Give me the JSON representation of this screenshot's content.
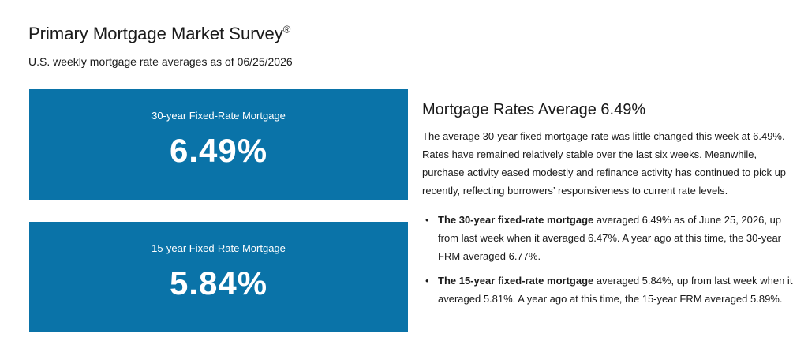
{
  "header": {
    "title": "Primary Mortgage Market Survey",
    "title_mark": "®",
    "subtitle": "U.S. weekly mortgage rate averages as of 06/25/2026"
  },
  "cards": [
    {
      "label": "30-year Fixed-Rate Mortgage",
      "value": "6.49%"
    },
    {
      "label": "15-year Fixed-Rate Mortgage",
      "value": "5.84%"
    }
  ],
  "summary": {
    "heading": "Mortgage Rates Average 6.49%",
    "body": "The average 30-year fixed mortgage rate was little changed this week at 6.49%. Rates have remained relatively stable over the last six weeks. Meanwhile, purchase activity eased modestly and refinance activity has continued to pick up recently, reflecting borrowers’ responsiveness to current rate levels.",
    "bullets": [
      {
        "bold": "The 30-year fixed-rate mortgage",
        "text": " averaged 6.49% as of June 25, 2026, up from last week when it averaged 6.47%. A year ago at this time, the 30-year FRM averaged 6.77%."
      },
      {
        "bold": "The 15-year fixed-rate mortgage",
        "text": " averaged 5.84%, up from last week when it averaged 5.81%. A year ago at this time, the 15-year FRM averaged 5.89%."
      }
    ]
  },
  "colors": {
    "card_background": "#0a73a8",
    "card_text": "#ffffff",
    "text": "#1a1a1a"
  }
}
